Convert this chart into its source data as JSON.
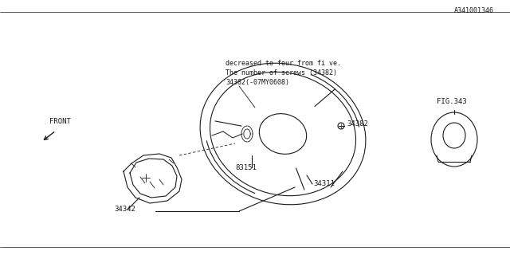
{
  "bg_color": "#ffffff",
  "line_color": "#1a1a1a",
  "fig_width": 6.4,
  "fig_height": 3.2,
  "dpi": 100,
  "label_34342": "34342",
  "label_83151": "83151",
  "label_34311": "34311",
  "label_34382": "34382",
  "label_fig343": "FIG.343",
  "note_line1": "34382(-07MY0608)",
  "note_line2": "The number of screws (34382)",
  "note_line3": "decreased to four from fi ve.",
  "watermark": "A341001346",
  "front_label": "FRONT"
}
